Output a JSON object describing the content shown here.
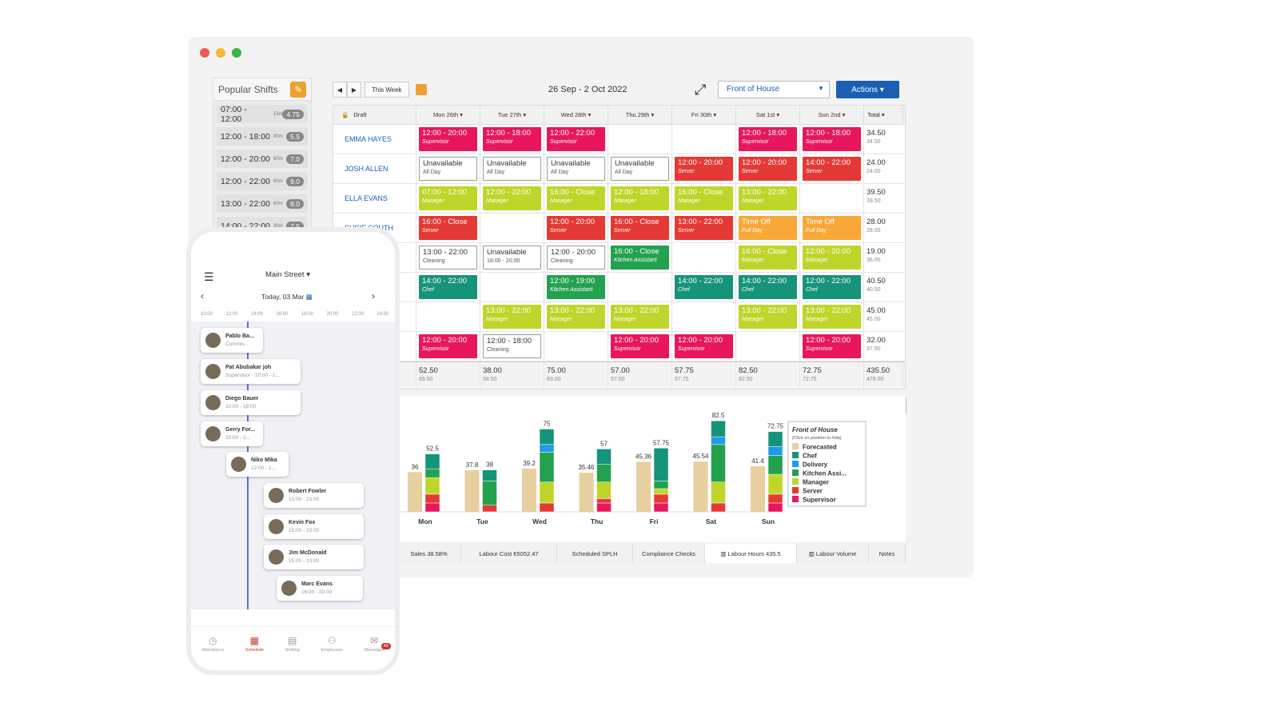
{
  "popular": {
    "title": "Popular Shifts",
    "items": [
      {
        "time": "07:00 - 12:00",
        "brk": "15m",
        "hrs": "4.75"
      },
      {
        "time": "12:00 - 18:00",
        "brk": "30m",
        "hrs": "5.5"
      },
      {
        "time": "12:00 - 20:00",
        "brk": "60m",
        "hrs": "7.0"
      },
      {
        "time": "12:00 - 22:00",
        "brk": "60m",
        "hrs": "9.0"
      },
      {
        "time": "13:00 - 22:00",
        "brk": "60m",
        "hrs": "8.0"
      },
      {
        "time": "14:00 - 22:00",
        "brk": "30m",
        "hrs": "7.5"
      }
    ]
  },
  "toolbar": {
    "this_week": "This Week",
    "date_range": "26 Sep - 2 Oct 2022",
    "location": "Front of House",
    "actions": "Actions ▾"
  },
  "grid": {
    "draft": "Draft",
    "days": [
      "Mon 26th ▾",
      "Tue 27th ▾",
      "Wed 28th ▾",
      "Thu 29th ▾",
      "Fri 30th ▾",
      "Sat 1st ▾",
      "Sun 2nd ▾"
    ],
    "total_label": "Total ▾",
    "rows": [
      {
        "name": "EMMA HAYES",
        "total": "34.50",
        "sub": "34.50",
        "cells": [
          [
            "12:00 - 20:00",
            "Supervisor",
            "sup"
          ],
          [
            "12:00 - 18:00",
            "Supervisor",
            "sup"
          ],
          [
            "12:00 - 22:00",
            "Supervisor",
            "sup"
          ],
          null,
          null,
          [
            "12:00 - 18:00",
            "Supervisor",
            "sup"
          ],
          [
            "12:00 - 18:00",
            "Supervisor",
            "sup"
          ]
        ]
      },
      {
        "name": "JOSH ALLEN",
        "total": "24.00",
        "sub": "24.00",
        "cells": [
          [
            "Unavailable",
            "All Day",
            "un"
          ],
          [
            "Unavailable",
            "All Day",
            "un"
          ],
          [
            "Unavailable",
            "All Day",
            "un"
          ],
          [
            "Unavailable",
            "All Day",
            "un"
          ],
          [
            "12:00 - 20:00",
            "Server",
            "srv"
          ],
          [
            "12:00 - 20:00",
            "Server",
            "srv"
          ],
          [
            "14:00 - 22:00",
            "Server",
            "srv"
          ]
        ]
      },
      {
        "name": "ELLA EVANS",
        "total": "39.50",
        "sub": "39.50",
        "cells": [
          [
            "07:00 - 12:00",
            "Manager",
            "mgr"
          ],
          [
            "12:00 - 22:00",
            "Manager",
            "mgr"
          ],
          [
            "16:00 - Close",
            "Manager",
            "mgr"
          ],
          [
            "12:00 - 18:00",
            "Manager",
            "mgr"
          ],
          [
            "16:00 - Close",
            "Manager",
            "mgr"
          ],
          [
            "13:00 - 22:00",
            "Manager",
            "mgr"
          ],
          null
        ]
      },
      {
        "name": "SUSIE SOUTH",
        "total": "28.00",
        "sub": "28.00",
        "cells": [
          [
            "16:00 - Close",
            "Server",
            "srv"
          ],
          null,
          [
            "12:00 - 20:00",
            "Server",
            "srv"
          ],
          [
            "16:00 - Close",
            "Server",
            "srv"
          ],
          [
            "13:00 - 22:00",
            "Server",
            "srv"
          ],
          [
            "Time Off",
            "Full Day",
            "off"
          ],
          [
            "Time Off",
            "Full Day",
            "off"
          ]
        ]
      },
      {
        "name": "",
        "total": "19.00",
        "sub": "36.00",
        "cells": [
          [
            "13:00 - 22:00",
            "Cleaning",
            "un"
          ],
          [
            "Unavailable",
            "18:00 - 20:00",
            "un"
          ],
          [
            "12:00 - 20:00",
            "Cleaning",
            "un"
          ],
          [
            "16:00 - Close",
            "Kitchen Assistant",
            "ka"
          ],
          null,
          [
            "16:00 - Close",
            "Manager",
            "mgr"
          ],
          [
            "12:00 - 20:00",
            "Manager",
            "mgr"
          ]
        ]
      },
      {
        "name": "",
        "total": "40.50",
        "sub": "40.50",
        "cells": [
          [
            "14:00 - 22:00",
            "Chef",
            "chef"
          ],
          null,
          [
            "12:00 - 19:00",
            "Kitchen Assistant",
            "ka"
          ],
          null,
          [
            "14:00 - 22:00",
            "Chef",
            "chef"
          ],
          [
            "14:00 - 22:00",
            "Chef",
            "chef"
          ],
          [
            "12:00 - 22:00",
            "Chef",
            "chef"
          ]
        ]
      },
      {
        "name": "",
        "total": "45.00",
        "sub": "45.00",
        "cells": [
          null,
          [
            "13:00 - 22:00",
            "Manager",
            "mgr"
          ],
          [
            "13:00 - 22:00",
            "Manager",
            "mgr"
          ],
          [
            "13:00 - 22:00",
            "Manager",
            "mgr"
          ],
          null,
          [
            "13:00 - 22:00",
            "Manager",
            "mgr"
          ],
          [
            "13:00 - 22:00",
            "Manager",
            "mgr"
          ]
        ]
      },
      {
        "name": "",
        "total": "32.00",
        "sub": "37.50",
        "cells": [
          [
            "12:00 - 20:00",
            "Supervisor",
            "sup"
          ],
          [
            "12:00 - 18:00",
            "Cleaning",
            "un"
          ],
          null,
          [
            "12:00 - 20:00",
            "Supervisor",
            "sup"
          ],
          [
            "12:00 - 20:00",
            "Supervisor",
            "sup"
          ],
          null,
          [
            "12:00 - 20:00",
            "Supervisor",
            "sup"
          ]
        ]
      }
    ],
    "totals": [
      [
        "52.50",
        "66.50"
      ],
      [
        "38.00",
        "58.50"
      ],
      [
        "75.00",
        "83.00"
      ],
      [
        "57.00",
        "57.00"
      ],
      [
        "57.75",
        "57.75"
      ],
      [
        "82.50",
        "82.50"
      ],
      [
        "72.75",
        "72.75"
      ],
      [
        "435.50",
        "478.00"
      ]
    ]
  },
  "colors": {
    "sup": "#e8175d",
    "srv": "#e53935",
    "mgr": "#c0d52a",
    "ka": "#23a14f",
    "chef": "#16947a",
    "del": "#1e9be9",
    "fc": "#e8cfa0"
  },
  "chart_data": {
    "type": "bar",
    "categories": [
      "Mon",
      "Tue",
      "Wed",
      "Thu",
      "Fri",
      "Sat",
      "Sun"
    ],
    "forecast": [
      36,
      37.8,
      39.2,
      35.46,
      45.36,
      45.54,
      41.4
    ],
    "totals": [
      52.5,
      38,
      75,
      57,
      57.75,
      82.5,
      72.75
    ],
    "series": [
      {
        "name": "Supervisor",
        "key": "sup",
        "values": [
          8,
          0,
          0,
          8,
          8,
          0,
          8
        ]
      },
      {
        "name": "Server",
        "key": "srv",
        "values": [
          8,
          6,
          8,
          4,
          8,
          8,
          8
        ]
      },
      {
        "name": "Manager",
        "key": "mgr",
        "values": [
          15,
          0,
          19,
          15,
          5,
          19,
          18
        ]
      },
      {
        "name": "Kitchen Assi...",
        "key": "ka",
        "values": [
          8,
          22,
          27,
          16,
          7,
          34,
          17
        ]
      },
      {
        "name": "Delivery",
        "key": "del",
        "values": [
          0,
          0,
          7,
          0,
          0,
          7,
          8
        ]
      },
      {
        "name": "Chef",
        "key": "chef",
        "values": [
          13.5,
          10,
          14,
          14,
          29.75,
          14.5,
          13.75
        ]
      }
    ],
    "legend_title": "Front of House",
    "legend_hint": "(Click on position to hide)",
    "legend": [
      [
        "Forecasted",
        "fc"
      ],
      [
        "Chef",
        "chef"
      ],
      [
        "Delivery",
        "del"
      ],
      [
        "Kitchen Assi...",
        "ka"
      ],
      [
        "Manager",
        "mgr"
      ],
      [
        "Server",
        "srv"
      ],
      [
        "Supervisor",
        "sup"
      ]
    ]
  },
  "tabs": [
    "Sales 38.58%",
    "Labour Cost €5052.47",
    "Scheduled SPLH",
    "Compliance Checks",
    "▥ Labour Hours 435.5",
    "▥ Labour Volume",
    "Notes"
  ],
  "phone": {
    "location": "Main Street ▾",
    "date": "Today, 03 Mar",
    "times": [
      "10:00",
      "12:00",
      "14:00",
      "16:00",
      "18:00",
      "20:00",
      "22:00",
      "24:00"
    ],
    "cards": [
      [
        "Pablo Ba...",
        "Commis..."
      ],
      [
        "Pat Abubakar joh",
        "Supervisor · 10:00 - 1..."
      ],
      [
        "Diego Bauer",
        "10:00 - 18:00"
      ],
      [
        "Gerry For...",
        "10:00 - 1..."
      ],
      [
        "Niko Mika",
        "12:00 - 1..."
      ],
      [
        "Robert Fowler",
        "15:00 - 23:00"
      ],
      [
        "Kevin Fox",
        "15:00 - 23:00"
      ],
      [
        "Jim McDonald",
        "15:00 - 23:00"
      ],
      [
        "Marc Evans",
        "16:00 - 22:00"
      ]
    ],
    "nav": [
      "Attendance",
      "Schedule",
      "Shifting",
      "Employees",
      "Messages"
    ],
    "badge": "49"
  }
}
